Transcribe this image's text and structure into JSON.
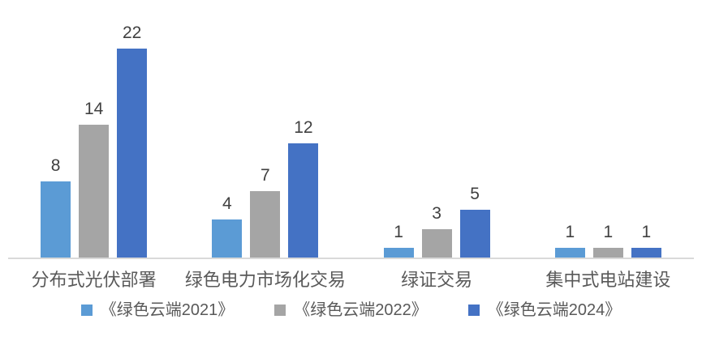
{
  "chart_data": {
    "type": "bar",
    "categories": [
      "分布式光伏部署",
      "绿色电力市场化交易",
      "绿证交易",
      "集中式电站建设"
    ],
    "series": [
      {
        "name": "《绿色云端2021》",
        "color": "#5B9BD5",
        "values": [
          8,
          4,
          1,
          1
        ]
      },
      {
        "name": "《绿色云端2022》",
        "color": "#A5A5A5",
        "values": [
          14,
          7,
          3,
          1
        ]
      },
      {
        "name": "《绿色云端2024》",
        "color": "#4472C4",
        "values": [
          22,
          12,
          5,
          1
        ]
      }
    ],
    "title": "",
    "xlabel": "",
    "ylabel": "",
    "ylim": [
      0,
      22
    ],
    "grid": false,
    "y_axis_visible": false,
    "legend_position": "bottom",
    "data_labels": true
  },
  "colors": {
    "background": "#FFFFFF",
    "axis_line": "#D9D9D9",
    "value_label": "#404040",
    "category_label": "#595959",
    "legend_label": "#595959"
  }
}
